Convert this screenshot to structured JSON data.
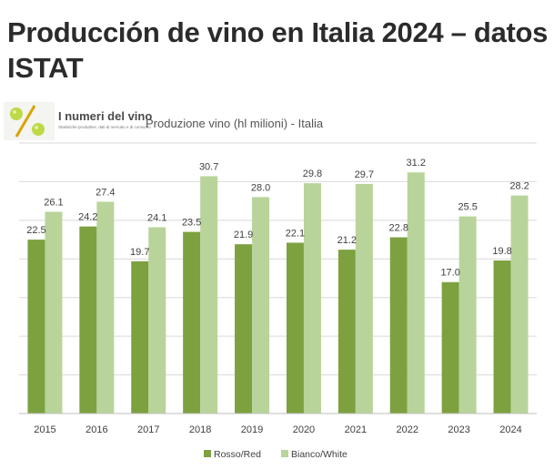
{
  "page": {
    "title": "Producción de vino en Italia 2024 – datos ISTAT"
  },
  "logo": {
    "title": "I numeri del vino",
    "subtitle": "Statistiche produttive, dati di mercato e di consumo"
  },
  "colors": {
    "red_series": "#7da13f",
    "white_series": "#b8d49a",
    "grid": "#d9d9d9",
    "text": "#404040"
  },
  "chart_data": {
    "type": "bar",
    "title": "Produzione vino (hl milioni) - Italia",
    "categories": [
      "2015",
      "2016",
      "2017",
      "2018",
      "2019",
      "2020",
      "2021",
      "2022",
      "2023",
      "2024"
    ],
    "series": [
      {
        "name": "Rosso/Red",
        "color": "#7da13f",
        "values": [
          22.5,
          24.2,
          19.7,
          23.5,
          21.9,
          22.1,
          21.2,
          22.8,
          17.0,
          19.8
        ]
      },
      {
        "name": "Bianco/White",
        "color": "#b8d49a",
        "values": [
          26.1,
          27.4,
          24.1,
          30.7,
          28.0,
          29.8,
          29.7,
          31.2,
          25.5,
          28.2
        ]
      }
    ],
    "ylim": [
      0,
      35
    ],
    "grid": true,
    "legend": "bottom",
    "xlabel": "",
    "ylabel": ""
  }
}
